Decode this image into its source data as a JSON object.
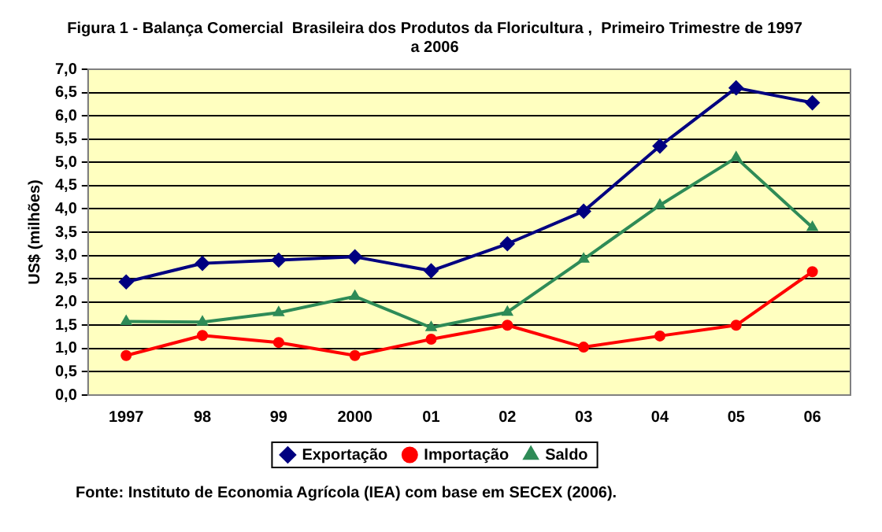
{
  "chart_data": {
    "type": "line",
    "title": "Figura 1 - Balança Comercial  Brasileira dos Produtos da Floricultura ,  Primeiro Trimestre de 1997 a 2006",
    "ylabel": "US$ (milhões)",
    "annotations": [
      "Fonte: Instituto de Economia Agrícola (IEA) com base em SECEX (2006)."
    ],
    "categories": [
      "1997",
      "98",
      "99",
      "2000",
      "01",
      "02",
      "03",
      "04",
      "05",
      "06"
    ],
    "series": [
      {
        "name": "Exportação",
        "color": "#000080",
        "marker": "diamond",
        "values": [
          2.43,
          2.83,
          2.9,
          2.97,
          2.67,
          3.25,
          3.95,
          5.35,
          6.6,
          6.28
        ]
      },
      {
        "name": "Importação",
        "color": "#ff0000",
        "marker": "circle",
        "values": [
          0.85,
          1.28,
          1.13,
          0.85,
          1.2,
          1.5,
          1.03,
          1.27,
          1.5,
          2.65
        ]
      },
      {
        "name": "Saldo",
        "color": "#2e8b57",
        "marker": "triangle",
        "values": [
          1.58,
          1.57,
          1.77,
          2.12,
          1.45,
          1.78,
          2.92,
          4.08,
          5.1,
          3.6
        ]
      }
    ],
    "ylim": [
      0,
      7
    ],
    "yticks": [
      {
        "value": 0,
        "label": "0,0"
      },
      {
        "value": 0.5,
        "label": "0,5"
      },
      {
        "value": 1,
        "label": "1,0"
      },
      {
        "value": 1.5,
        "label": "1,5"
      },
      {
        "value": 2,
        "label": "2,0"
      },
      {
        "value": 2.5,
        "label": "2,5"
      },
      {
        "value": 3,
        "label": "3,0"
      },
      {
        "value": 3.5,
        "label": "3,5"
      },
      {
        "value": 4,
        "label": "4,0"
      },
      {
        "value": 4.5,
        "label": "4,5"
      },
      {
        "value": 5,
        "label": "5,0"
      },
      {
        "value": 5.5,
        "label": "5,5"
      },
      {
        "value": 6,
        "label": "6,0"
      },
      {
        "value": 6.5,
        "label": "6,5"
      },
      {
        "value": 7,
        "label": "7,0"
      }
    ],
    "grid": "y",
    "legend": "bottom",
    "line_style": "solid"
  }
}
